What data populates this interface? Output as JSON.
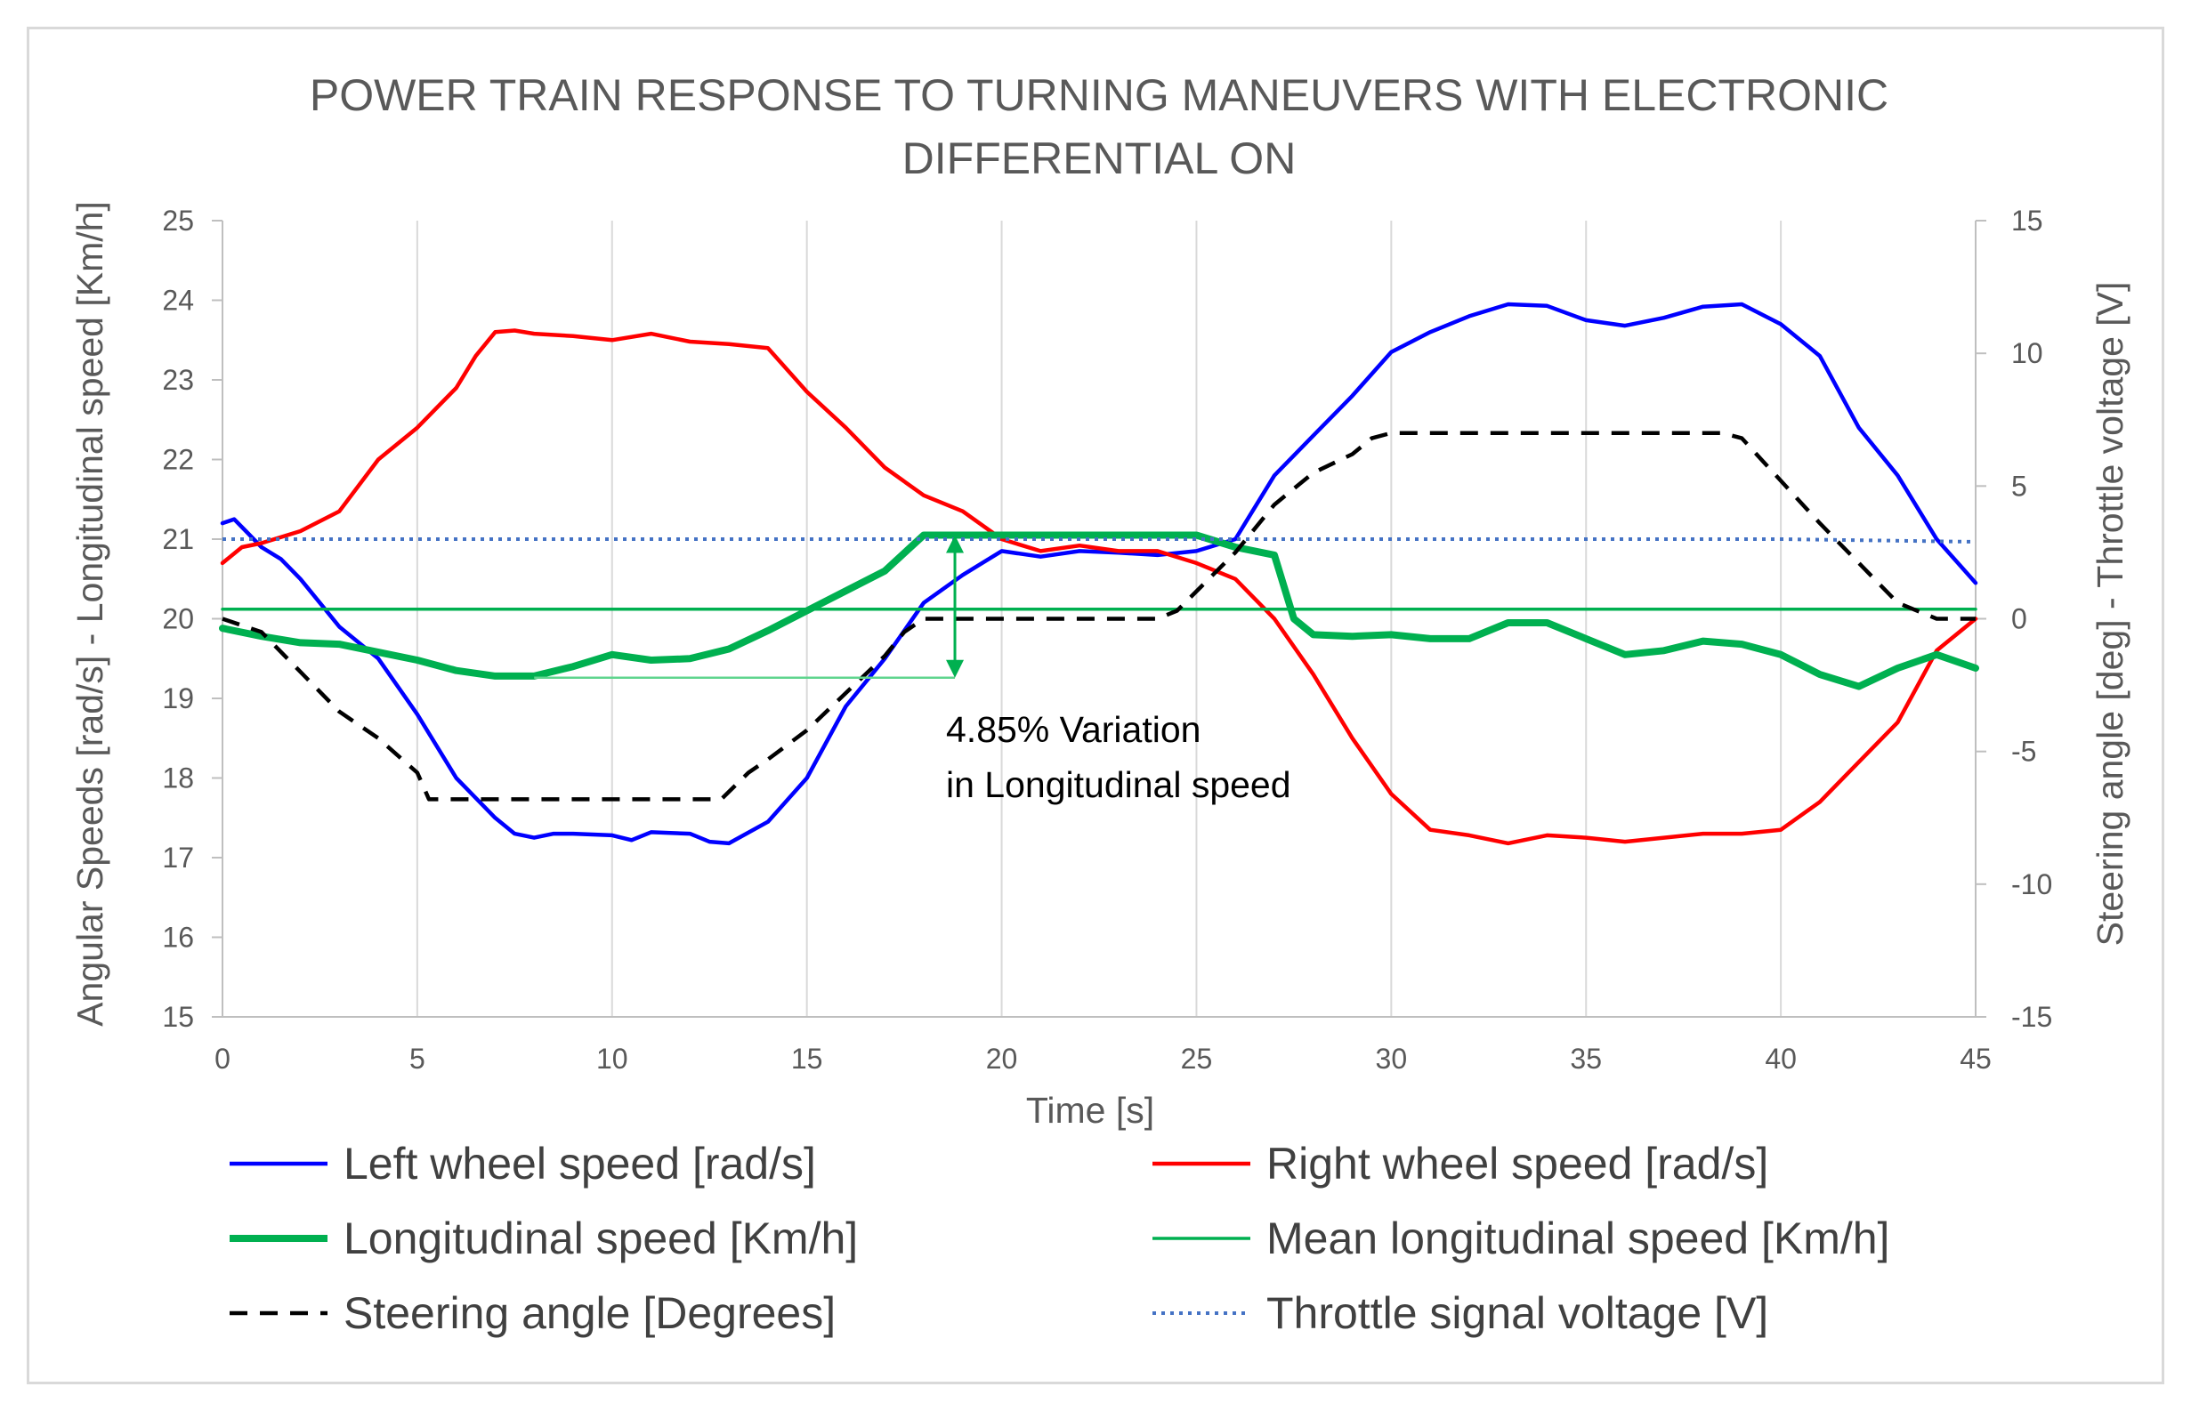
{
  "chart_data": {
    "type": "line",
    "title_lines": [
      "POWER TRAIN RESPONSE TO TURNING MANEUVERS WITH ELECTRONIC",
      "DIFFERENTIAL ON"
    ],
    "xlabel": "Time [s]",
    "ylabel_left": "Angular Speeds [rad/s] - Longitudinal speed [Km/h]",
    "ylabel_right": "Steering angle [deg] - Throttle voltage [V]",
    "xlim": [
      0,
      45
    ],
    "ylim_left": [
      15,
      25
    ],
    "ylim_right": [
      -15,
      15
    ],
    "x_ticks": [
      "0",
      "5",
      "10",
      "15",
      "20",
      "25",
      "30",
      "35",
      "40",
      "45"
    ],
    "y_left_ticks": [
      "15",
      "16",
      "17",
      "18",
      "19",
      "20",
      "21",
      "22",
      "23",
      "24",
      "25"
    ],
    "y_right_ticks": [
      "-15",
      "-10",
      "-5",
      "0",
      "5",
      "10",
      "15"
    ],
    "grid": "vertical",
    "legend_position": "bottom",
    "annotation": {
      "lines": [
        "4.85% Variation",
        "in Longitudinal speed"
      ],
      "arrow_x": 18.8,
      "arrow_y_from": 19.26,
      "arrow_y_to": 21.05
    },
    "series": [
      {
        "name": "Left wheel speed [rad/s]",
        "axis": "left",
        "color": "#0000ff",
        "style": "solid",
        "x": [
          0,
          0.3,
          0.6,
          1,
          1.5,
          2,
          2.5,
          3,
          4,
          5,
          6,
          7,
          7.5,
          8,
          8.5,
          9,
          10,
          10.5,
          11,
          12,
          12.5,
          13,
          14,
          15,
          16,
          17,
          18,
          19,
          20,
          21,
          22,
          23,
          24,
          25,
          26,
          27,
          28,
          29,
          30,
          31,
          32,
          33,
          34,
          35,
          36,
          37,
          38,
          39,
          40,
          41,
          42,
          43,
          44,
          45
        ],
        "values": [
          21.2,
          21.25,
          21.1,
          20.9,
          20.75,
          20.5,
          20.2,
          19.9,
          19.5,
          18.8,
          18.0,
          17.5,
          17.3,
          17.25,
          17.3,
          17.3,
          17.28,
          17.22,
          17.32,
          17.3,
          17.2,
          17.18,
          17.45,
          18.0,
          18.9,
          19.5,
          20.2,
          20.55,
          20.85,
          20.78,
          20.85,
          20.83,
          20.8,
          20.85,
          21.0,
          21.8,
          22.3,
          22.8,
          23.35,
          23.6,
          23.8,
          23.95,
          23.93,
          23.75,
          23.68,
          23.78,
          23.92,
          23.95,
          23.7,
          23.3,
          22.4,
          21.8,
          21.0,
          20.45
        ]
      },
      {
        "name": "Right wheel speed [rad/s]",
        "axis": "left",
        "color": "#ff0000",
        "style": "solid",
        "x": [
          0,
          0.5,
          1,
          2,
          3,
          4,
          5,
          6,
          6.5,
          7,
          7.5,
          8,
          9,
          10,
          11,
          12,
          13,
          14,
          15,
          16,
          17,
          18,
          19,
          20,
          21,
          22,
          23,
          24,
          25,
          26,
          27,
          28,
          29,
          30,
          31,
          32,
          33,
          34,
          35,
          36,
          37,
          38,
          39,
          40,
          41,
          42,
          43,
          44,
          45
        ],
        "values": [
          20.7,
          20.9,
          20.95,
          21.1,
          21.35,
          22.0,
          22.4,
          22.9,
          23.3,
          23.6,
          23.62,
          23.58,
          23.55,
          23.5,
          23.58,
          23.48,
          23.45,
          23.4,
          22.85,
          22.4,
          21.9,
          21.55,
          21.35,
          21.0,
          20.85,
          20.92,
          20.85,
          20.85,
          20.7,
          20.5,
          20.0,
          19.3,
          18.5,
          17.8,
          17.35,
          17.28,
          17.18,
          17.28,
          17.25,
          17.2,
          17.25,
          17.3,
          17.3,
          17.35,
          17.7,
          18.2,
          18.7,
          19.6,
          20.0
        ]
      },
      {
        "name": "Longitudinal speed [Km/h]",
        "axis": "left",
        "color": "#00b050",
        "style": "thick",
        "x": [
          0,
          1,
          2,
          3,
          4,
          5,
          6,
          7,
          8,
          9,
          10,
          11,
          12,
          13,
          14,
          15,
          16,
          17,
          18,
          19,
          20,
          21,
          22,
          23,
          24,
          25,
          26,
          27,
          27.5,
          28,
          29,
          30,
          31,
          32,
          33,
          34,
          35,
          36,
          37,
          38,
          39,
          40,
          41,
          42,
          43,
          44,
          45
        ],
        "values": [
          19.88,
          19.78,
          19.7,
          19.68,
          19.58,
          19.48,
          19.35,
          19.28,
          19.28,
          19.4,
          19.55,
          19.48,
          19.5,
          19.62,
          19.85,
          20.1,
          20.35,
          20.6,
          21.05,
          21.05,
          21.05,
          21.05,
          21.05,
          21.05,
          21.05,
          21.05,
          20.9,
          20.8,
          20.0,
          19.8,
          19.78,
          19.8,
          19.75,
          19.75,
          19.95,
          19.95,
          19.75,
          19.55,
          19.6,
          19.72,
          19.68,
          19.55,
          19.3,
          19.15,
          19.38,
          19.55,
          19.38
        ]
      },
      {
        "name": "Mean longitudinal speed [Km/h]",
        "axis": "left",
        "color": "#00b050",
        "style": "thin",
        "x": [
          0,
          45
        ],
        "values": [
          20.12,
          20.12
        ]
      },
      {
        "name": "Steering angle [Degrees]",
        "axis": "right",
        "color": "#000000",
        "style": "dashed",
        "x": [
          0,
          1,
          2,
          3,
          4,
          5,
          5.3,
          6,
          8,
          10,
          12,
          12.8,
          13.5,
          14,
          15,
          16,
          17,
          17.5,
          18,
          20,
          22,
          24,
          24.5,
          26,
          27,
          28,
          29,
          29.5,
          30,
          32,
          34,
          36,
          38,
          38.5,
          39,
          40,
          41,
          42,
          43,
          44,
          45
        ],
        "values": [
          0,
          -0.5,
          -2,
          -3.5,
          -4.5,
          -5.8,
          -6.8,
          -6.8,
          -6.8,
          -6.8,
          -6.8,
          -6.8,
          -5.8,
          -5.3,
          -4.2,
          -2.8,
          -1.4,
          -0.5,
          0,
          0,
          0,
          0,
          0.3,
          2.5,
          4.3,
          5.5,
          6.2,
          6.8,
          7,
          7,
          7,
          7,
          7,
          7,
          6.8,
          5.2,
          3.6,
          2.1,
          0.6,
          0,
          0
        ]
      },
      {
        "name": "Throttle signal voltage [V]",
        "axis": "right",
        "color": "#4472c4",
        "style": "dotted",
        "x": [
          0,
          10,
          20,
          30,
          40,
          45
        ],
        "values": [
          3,
          3,
          3,
          3,
          3,
          2.9
        ]
      }
    ]
  }
}
